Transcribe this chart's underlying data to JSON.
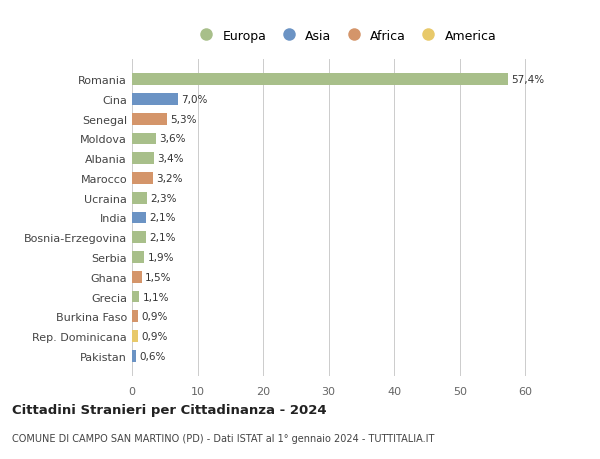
{
  "categories": [
    "Romania",
    "Cina",
    "Senegal",
    "Moldova",
    "Albania",
    "Marocco",
    "Ucraina",
    "India",
    "Bosnia-Erzegovina",
    "Serbia",
    "Ghana",
    "Grecia",
    "Burkina Faso",
    "Rep. Dominicana",
    "Pakistan"
  ],
  "values": [
    57.4,
    7.0,
    5.3,
    3.6,
    3.4,
    3.2,
    2.3,
    2.1,
    2.1,
    1.9,
    1.5,
    1.1,
    0.9,
    0.9,
    0.6
  ],
  "continents": [
    "Europa",
    "Asia",
    "Africa",
    "Europa",
    "Europa",
    "Africa",
    "Europa",
    "Asia",
    "Europa",
    "Europa",
    "Africa",
    "Europa",
    "Africa",
    "America",
    "Asia"
  ],
  "colors": {
    "Europa": "#a8bf8a",
    "Asia": "#6b93c4",
    "Africa": "#d4956a",
    "America": "#e8c96a"
  },
  "legend_order": [
    "Europa",
    "Asia",
    "Africa",
    "America"
  ],
  "title": "Cittadini Stranieri per Cittadinanza - 2024",
  "subtitle": "COMUNE DI CAMPO SAN MARTINO (PD) - Dati ISTAT al 1° gennaio 2024 - TUTTITALIA.IT",
  "xlim": [
    0,
    65
  ],
  "xticks": [
    0,
    10,
    20,
    30,
    40,
    50,
    60
  ],
  "background_color": "#ffffff",
  "grid_color": "#cccccc",
  "bar_height": 0.6
}
